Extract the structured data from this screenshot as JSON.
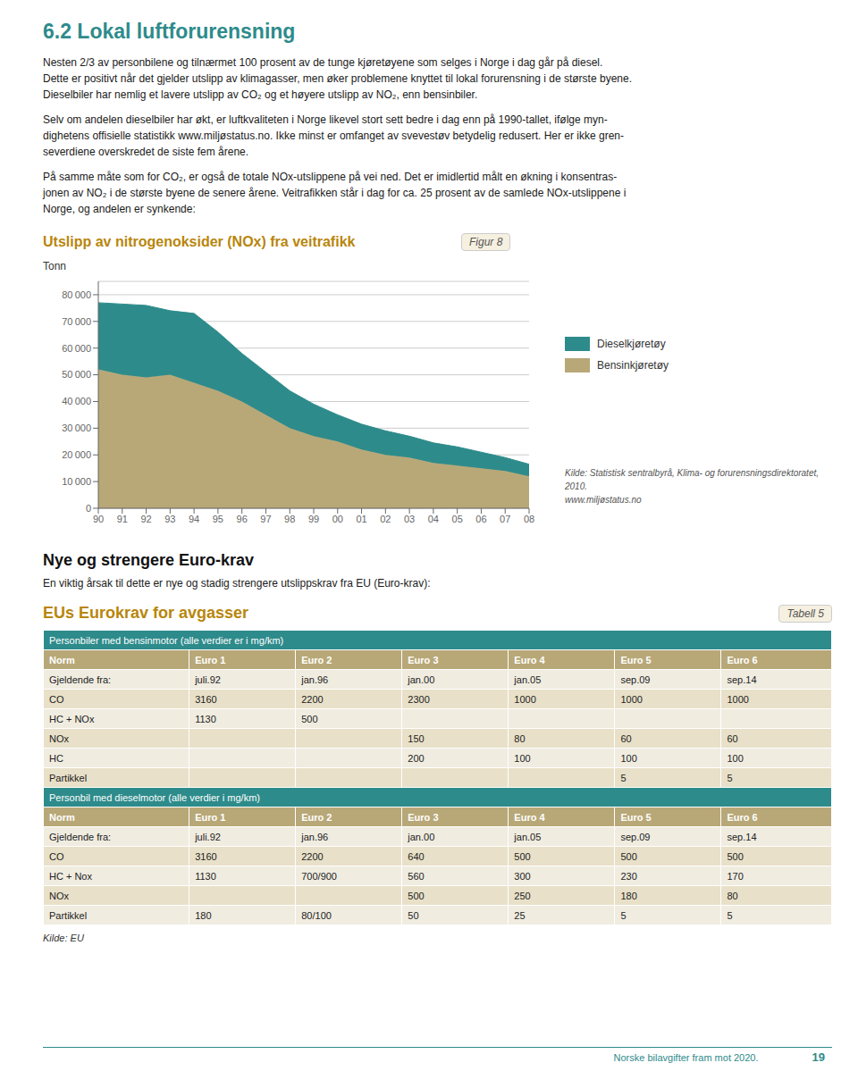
{
  "page_title": "6.2 Lokal luftforurensning",
  "paragraphs": [
    "Nesten 2/3 av personbilene og tilnærmet 100 prosent av de tunge kjøretøyene som selges i Norge i dag går på diesel.\nDette er positivt når det gjelder utslipp av klimagasser, men øker problemene knyttet til lokal forurensning i de største byene.\nDieselbiler har nemlig et lavere utslipp av CO₂ og et høyere utslipp av NO₂, enn bensinbiler.",
    "Selv om andelen dieselbiler har økt, er luftkvaliteten i Norge likevel stort sett bedre i dag enn på 1990-tallet, ifølge myn-\ndighetens offisielle statistikk www.miljøstatus.no. Ikke minst er omfanget av svevestøv betydelig redusert. Her er ikke gren-\nseverdiene overskredet de siste fem årene.",
    "På samme måte som for CO₂, er også de totale NOx-utslippene på vei ned. Det er imidlertid målt en økning i konsentras-\njonen av NO₂ i de største byene de senere årene. Veitrafikken står i dag for ca. 25 prosent av de samlede NOx-utslippene i\nNorge, og andelen er synkende:"
  ],
  "chart_data": {
    "type": "area",
    "title": "Utslipp av nitrogenoksider (NOx) fra veitrafikk",
    "ylabel": "Tonn",
    "categories": [
      "90",
      "91",
      "92",
      "93",
      "94",
      "95",
      "96",
      "97",
      "98",
      "99",
      "00",
      "01",
      "02",
      "03",
      "04",
      "05",
      "06",
      "07",
      "08"
    ],
    "stacked": true,
    "series": [
      {
        "name": "Bensinkjøretøy",
        "color": "#b8a878",
        "values": [
          52000,
          50000,
          49000,
          50000,
          47000,
          44000,
          40000,
          35000,
          30000,
          27000,
          25000,
          22000,
          20000,
          19000,
          17000,
          16000,
          15000,
          14000,
          12000
        ]
      },
      {
        "name": "Dieselkjøretøy",
        "color": "#2e8b8b",
        "values": [
          25000,
          26500,
          27000,
          24000,
          26000,
          22000,
          18000,
          16000,
          14000,
          12000,
          10000,
          9500,
          9000,
          8000,
          7500,
          7000,
          6000,
          5000,
          4500
        ]
      }
    ],
    "ylim": [
      0,
      85000
    ],
    "yticks": [
      0,
      {
        "value": 10000,
        "label": "10 000"
      },
      {
        "value": 20000,
        "label": "20 000"
      },
      {
        "value": 30000,
        "label": "30 000"
      },
      {
        "value": 40000,
        "label": "40 000"
      },
      {
        "value": 50000,
        "label": "50 000"
      },
      {
        "value": 60000,
        "label": "60 000"
      },
      {
        "value": 70000,
        "label": "70 000"
      },
      {
        "value": 80000,
        "label": "80 000"
      }
    ],
    "grid": true,
    "legend": "right"
  },
  "figure_label": "Figur 8",
  "chart_source": "Kilde: Statistisk sentralbyrå, Klima- og forurensningsdirektoratet, 2010.\nwww.miljøstatus.no",
  "section_title": "Nye og strengere Euro-krav",
  "section_text": "En viktig årsak til dette er nye og stadig strengere utslippskrav fra EU (Euro-krav):",
  "table": {
    "title": "EUs Eurokrav for avgasser",
    "label": "Tabell 5",
    "columns": [
      "Norm",
      "Euro 1",
      "Euro 2",
      "Euro 3",
      "Euro 4",
      "Euro 5",
      "Euro 6"
    ],
    "sections": [
      {
        "header": "Personbiler med bensinmotor (alle verdier er i mg/km)",
        "rows": [
          [
            "Gjeldende fra:",
            "juli.92",
            "jan.96",
            "jan.00",
            "jan.05",
            "sep.09",
            "sep.14"
          ],
          [
            "CO",
            "3160",
            "2200",
            "2300",
            "1000",
            "1000",
            "1000"
          ],
          [
            "HC + NOx",
            "1130",
            "500",
            null,
            null,
            null,
            null
          ],
          [
            "NOx",
            null,
            null,
            "150",
            "80",
            "60",
            "60"
          ],
          [
            "HC",
            null,
            null,
            "200",
            "100",
            "100",
            "100"
          ],
          [
            "Partikkel",
            null,
            null,
            null,
            null,
            "5",
            "5"
          ]
        ]
      },
      {
        "header": "Personbil med dieselmotor (alle verdier i mg/km)",
        "rows": [
          [
            "Gjeldende fra:",
            "juli.92",
            "jan.96",
            "jan.00",
            "jan.05",
            "sep.09",
            "sep.14"
          ],
          [
            "CO",
            "3160",
            "2200",
            "640",
            "500",
            "500",
            "500"
          ],
          [
            "HC + Nox",
            "1130",
            "700/900",
            "560",
            "300",
            "230",
            "170"
          ],
          [
            "NOx",
            null,
            null,
            "500",
            "250",
            "180",
            "80"
          ],
          [
            "Partikkel",
            "180",
            "80/100",
            "50",
            "25",
            "5",
            "5"
          ]
        ]
      }
    ],
    "source": "Kilde: EU"
  },
  "footer": {
    "text": "Norske bilavgifter fram mot 2020.",
    "page": "19"
  }
}
